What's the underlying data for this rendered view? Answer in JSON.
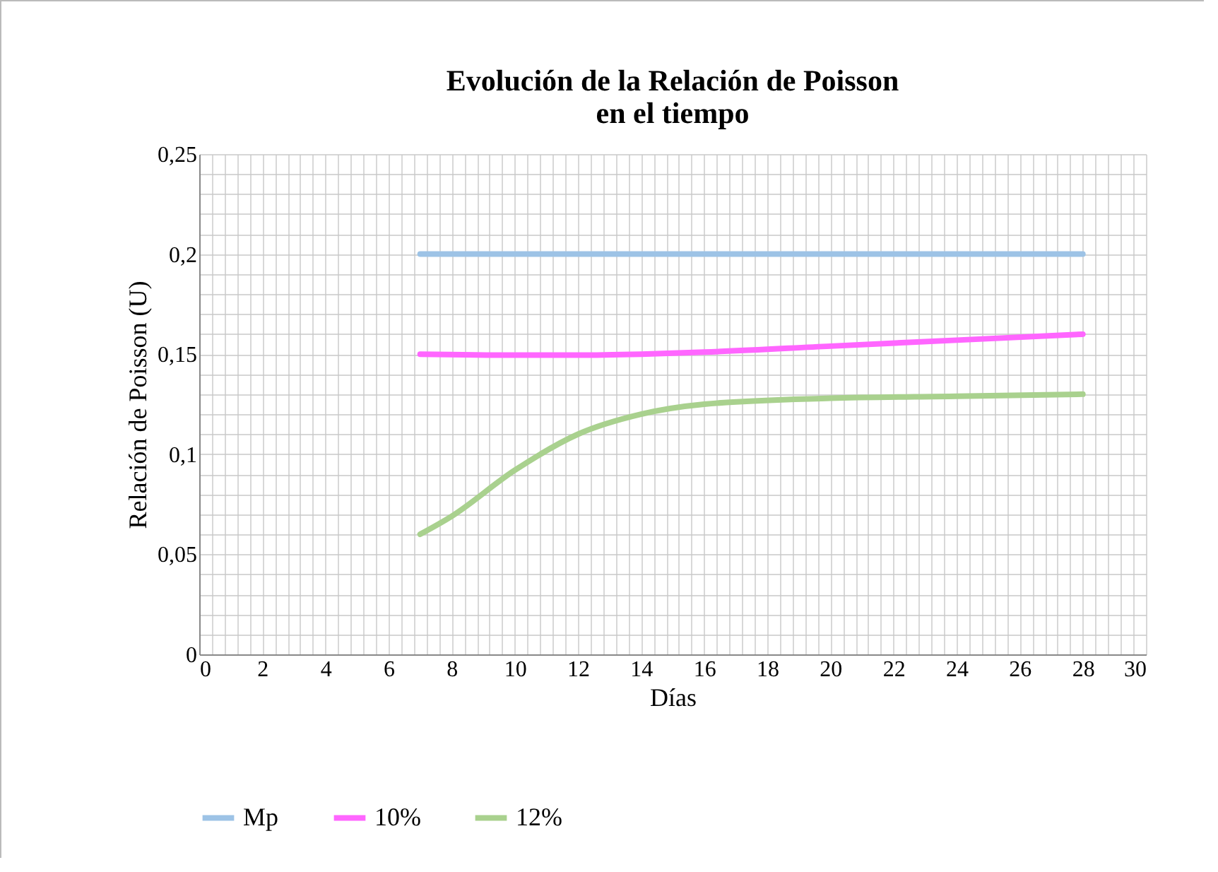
{
  "chart_data": {
    "type": "line",
    "title": "Evolución de la Relación de Poisson\nen el tiempo",
    "xlabel": "Días",
    "ylabel": "Relación de Poisson  (U)",
    "xlim": [
      0,
      30
    ],
    "xticks": [
      0,
      2,
      4,
      6,
      8,
      10,
      12,
      14,
      16,
      18,
      20,
      22,
      24,
      26,
      28,
      30
    ],
    "ylim": [
      0,
      0.25
    ],
    "yticks": [
      0,
      {
        "value": 0.05,
        "label": "0,05"
      },
      {
        "value": 0.1,
        "label": "0,1"
      },
      {
        "value": 0.15,
        "label": "0,15"
      },
      {
        "value": 0.2,
        "label": "0,2"
      },
      {
        "value": 0.25,
        "label": "0,25"
      }
    ],
    "grid": true,
    "legend": "bottom",
    "marker": "none",
    "line_style": "solid",
    "series": [
      {
        "name": "Mp",
        "color": "#9dc3e6",
        "x": [
          7,
          14,
          28
        ],
        "values": [
          0.2,
          0.2,
          0.2
        ]
      },
      {
        "name": "10%",
        "color": "#ff66ff",
        "x": [
          7,
          10,
          12,
          14,
          16,
          20,
          24,
          28
        ],
        "values": [
          0.15,
          0.1495,
          0.1495,
          0.15,
          0.151,
          0.154,
          0.157,
          0.16
        ]
      },
      {
        "name": "12%",
        "color": "#a9d18e",
        "x": [
          7,
          8,
          10,
          12,
          14,
          16,
          20,
          24,
          28
        ],
        "values": [
          0.06,
          0.069,
          0.092,
          0.11,
          0.12,
          0.125,
          0.128,
          0.129,
          0.13
        ]
      }
    ]
  }
}
